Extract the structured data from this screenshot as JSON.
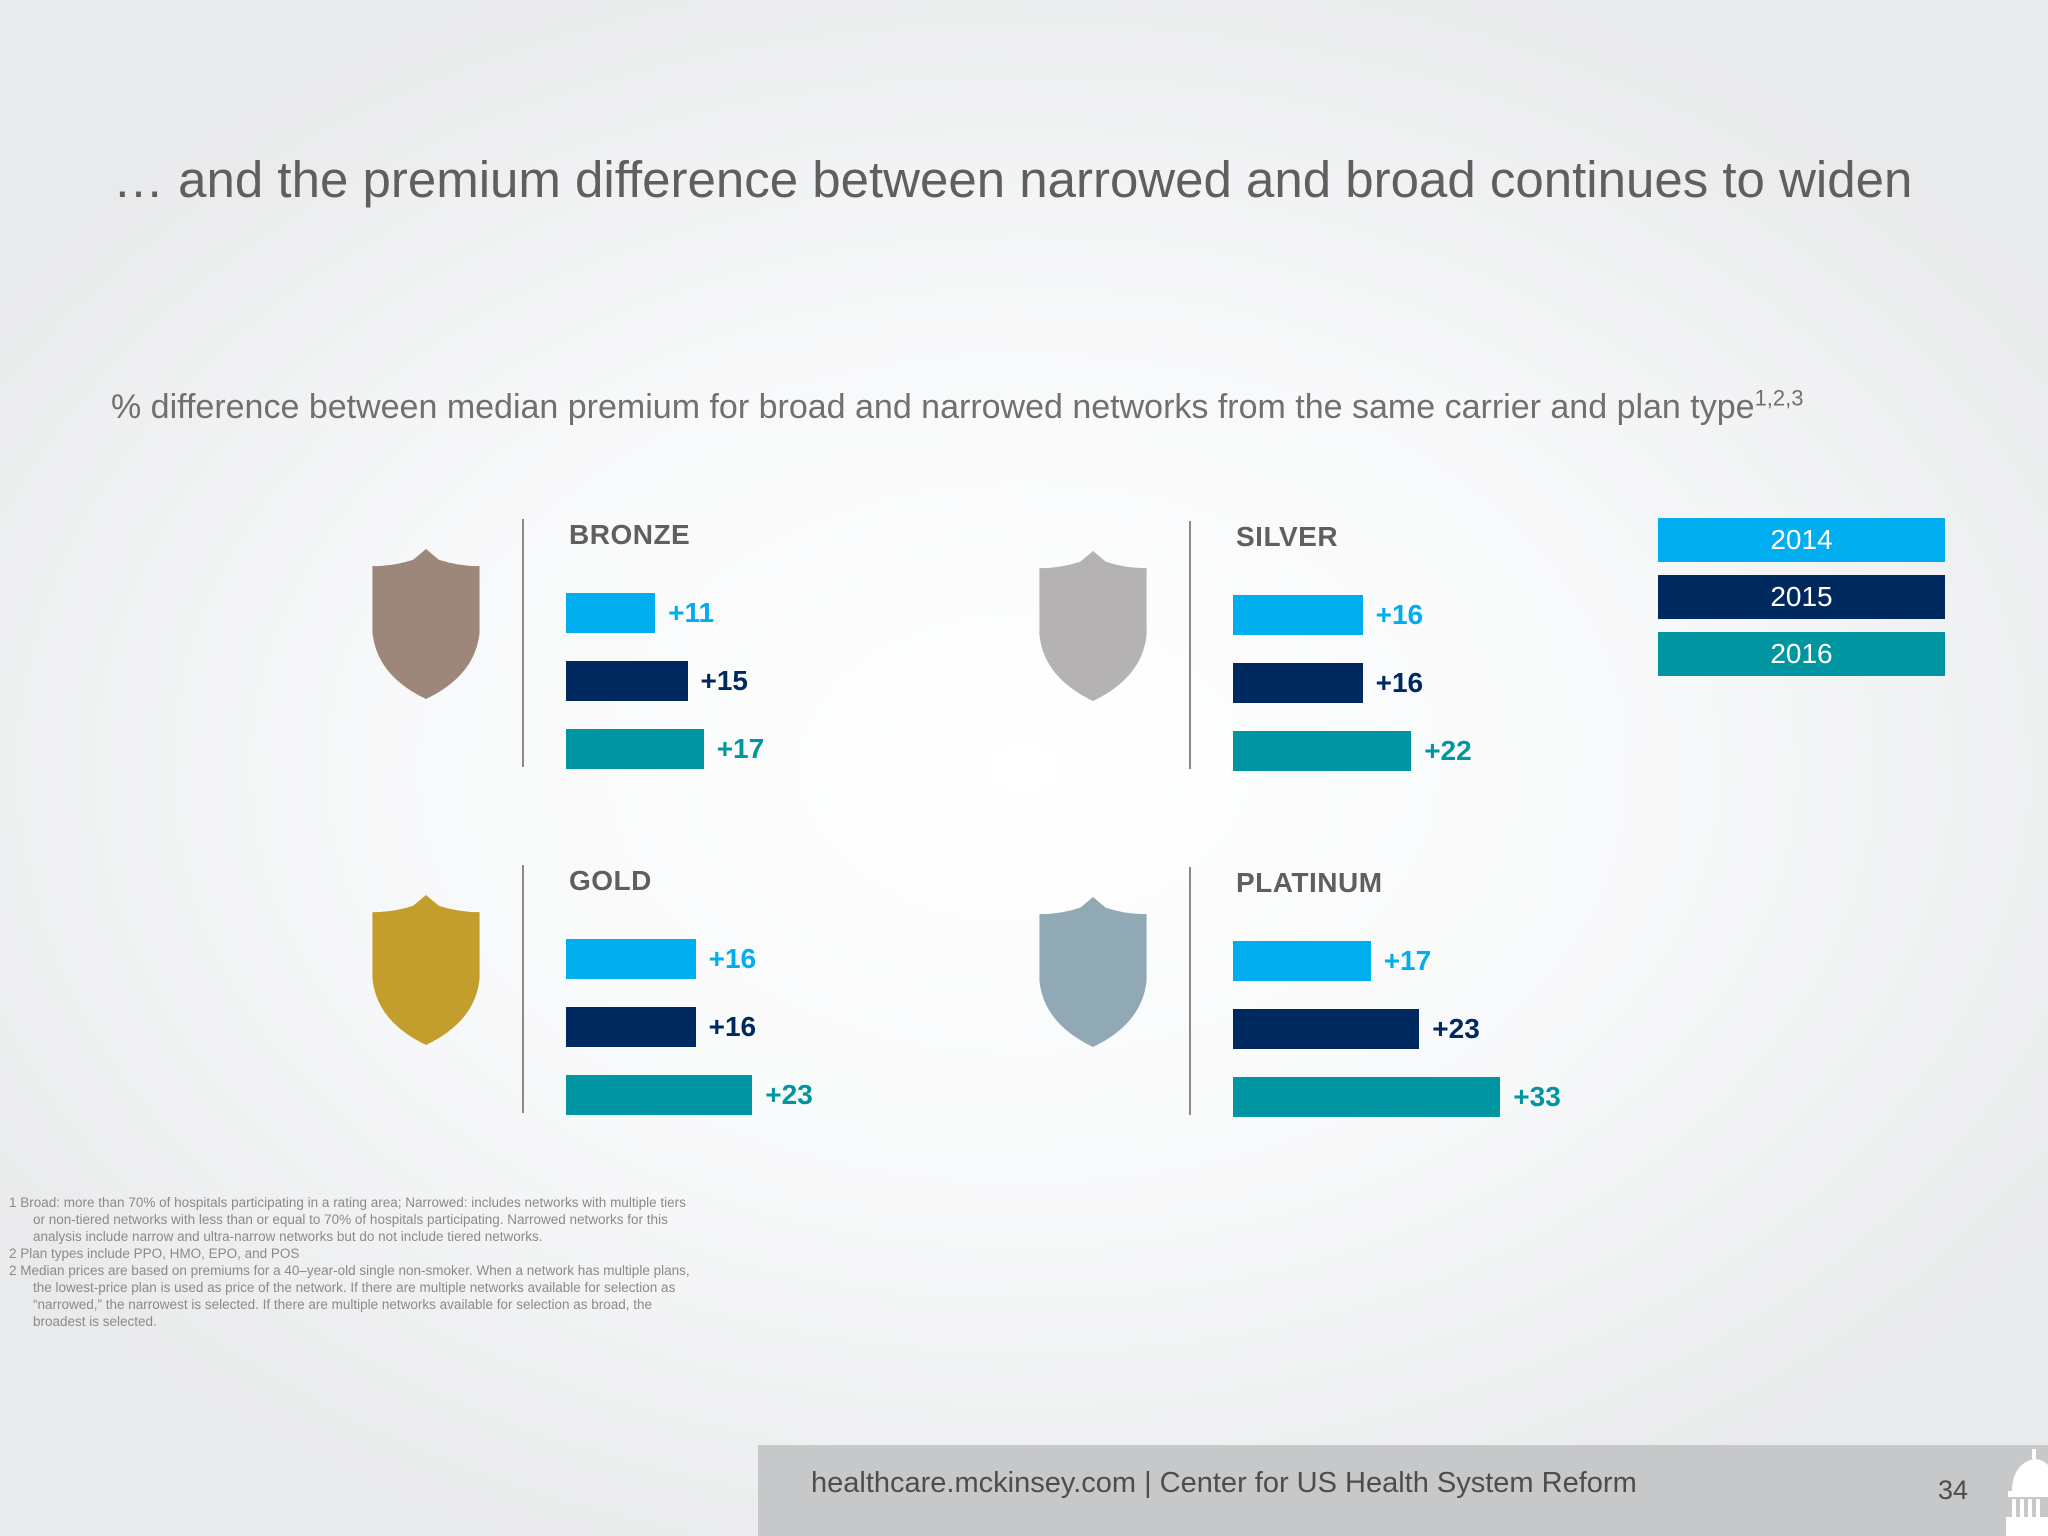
{
  "slide": {
    "title": "… and the premium difference between narrowed and broad continues to widen",
    "subtitle": "% difference between median premium for broad and narrowed networks from the same carrier and plan type",
    "subtitle_sup": "1,2,3"
  },
  "colors": {
    "2014": "#00aeef",
    "2015": "#002960",
    "2016": "#0096a1"
  },
  "chart_data": {
    "type": "bar",
    "orientation": "horizontal",
    "series_names": [
      "2014",
      "2015",
      "2016"
    ],
    "panels": [
      {
        "name": "BRONZE",
        "shield_color": "#9c877a",
        "values": [
          11,
          15,
          17
        ],
        "labels": [
          "+11",
          "+15",
          "+17"
        ]
      },
      {
        "name": "SILVER",
        "shield_color": "#b4b2b3",
        "values": [
          16,
          16,
          22
        ],
        "labels": [
          "+16",
          "+16",
          "+22"
        ]
      },
      {
        "name": "GOLD",
        "shield_color": "#c49e2c",
        "values": [
          16,
          16,
          23
        ],
        "labels": [
          "+16",
          "+16",
          "+23"
        ]
      },
      {
        "name": "PLATINUM",
        "shield_color": "#91a9b5",
        "values": [
          17,
          23,
          33
        ],
        "labels": [
          "+17",
          "+23",
          "+33"
        ]
      }
    ],
    "legend": {
      "entries": [
        "2014",
        "2015",
        "2016"
      ],
      "placement": "top-right"
    }
  },
  "footnotes": [
    "1 Broad: more than 70% of hospitals participating in a rating area; Narrowed: includes networks with multiple tiers",
    "or non-tiered networks with less than or equal to 70% of hospitals participating. Narrowed networks for this",
    "analysis include narrow and ultra-narrow networks but do not include tiered networks.",
    "2 Plan types include PPO, HMO, EPO, and POS",
    "2  Median prices are based on premiums for a 40–year-old single non-smoker. When a network has multiple plans,",
    "the lowest-price plan is used as price of the network. If there are multiple networks available for selection as",
    "“narrowed,” the narrowest is selected. If there are multiple networks available for selection as broad, the",
    "broadest is selected."
  ],
  "footer": {
    "text": "healthcare.mckinsey.com | Center for US Health System Reform",
    "page_number": "34",
    "logo_icon": "capitol-dome-icon"
  }
}
